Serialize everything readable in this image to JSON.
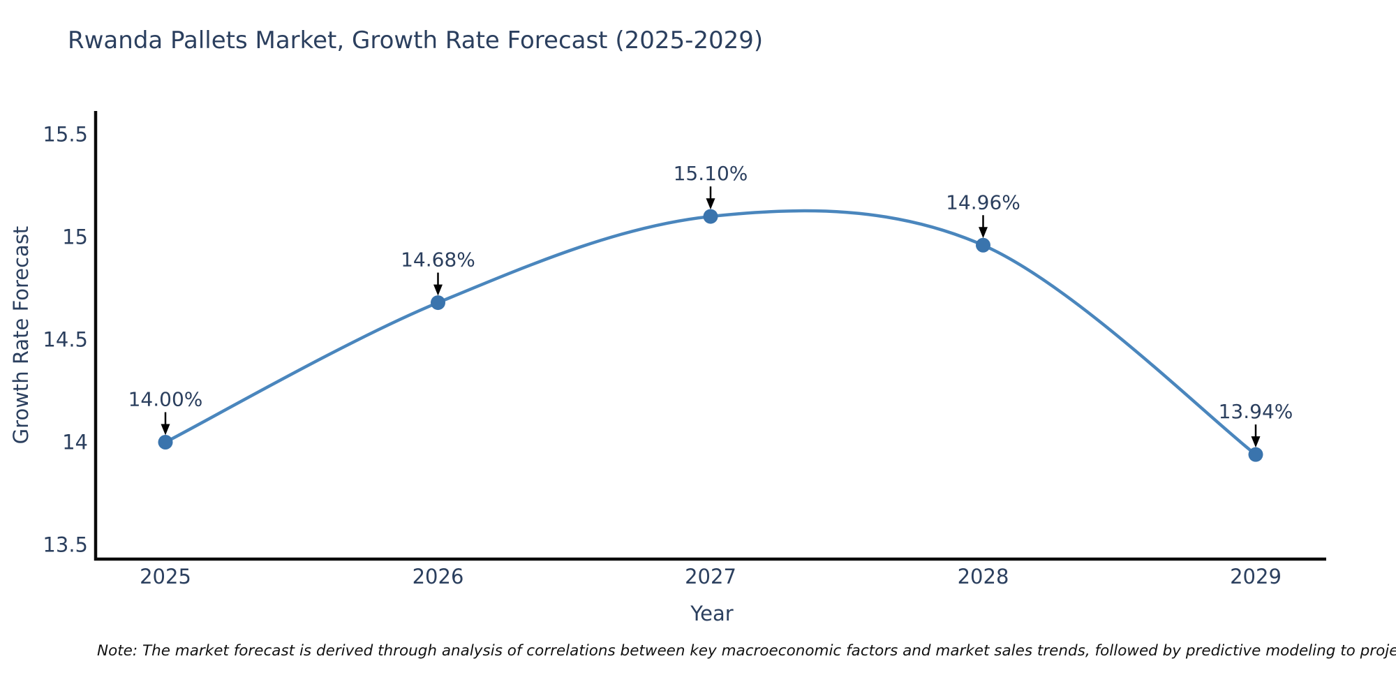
{
  "chart": {
    "title": "Rwanda Pallets Market, Growth Rate Forecast (2025-2029)",
    "xlabel": "Year",
    "ylabel": "Growth Rate Forecast",
    "note": "Note: The market forecast is derived through analysis of correlations between key macroeconomic factors and market sales trends, followed by predictive modeling to project future sales."
  },
  "chart_data": {
    "type": "line",
    "title": "Rwanda Pallets Market, Growth Rate Forecast (2025-2029)",
    "xlabel": "Year",
    "ylabel": "Growth Rate Forecast",
    "x": [
      2025,
      2026,
      2027,
      2028,
      2029
    ],
    "values": [
      14.0,
      14.68,
      15.1,
      14.96,
      13.94
    ],
    "point_labels": [
      "14.00%",
      "14.68%",
      "15.10%",
      "14.96%",
      "13.94%"
    ],
    "xtick_labels": [
      "2025",
      "2026",
      "2027",
      "2028",
      "2029"
    ],
    "yticks": [
      13.5,
      14,
      14.5,
      15,
      15.5
    ],
    "ytick_labels": [
      "13.5",
      "14",
      "14.5",
      "15",
      "15.5"
    ],
    "ylim": [
      13.43,
      15.62
    ],
    "grid": false,
    "legend": false,
    "line_shape": "spline",
    "annotation_arrows": true,
    "colors": {
      "line": "#4a86bd",
      "marker": "#3a74ad",
      "text": "#2b3f5e",
      "axis": "#0a0a0a",
      "arrow": "#000000",
      "note_text": "#111111",
      "background": "#ffffff"
    }
  }
}
